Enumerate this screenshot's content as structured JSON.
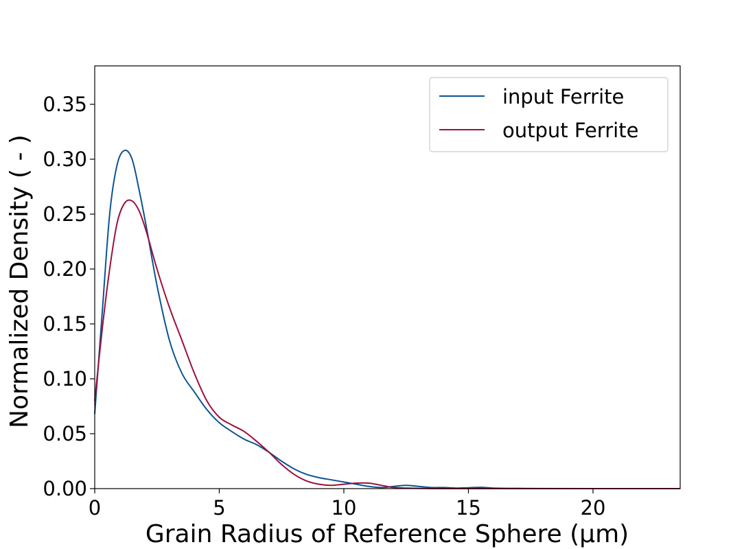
{
  "chart_data": {
    "type": "line",
    "title": "",
    "xlabel": "Grain Radius of Reference Sphere (μm)",
    "ylabel": "Normalized Density ( - )",
    "xlim": [
      0,
      23.5
    ],
    "ylim": [
      0,
      0.385
    ],
    "x_ticks": [
      0,
      5,
      10,
      15,
      20
    ],
    "x_tick_labels": [
      "0",
      "5",
      "10",
      "15",
      "20"
    ],
    "y_ticks": [
      0.0,
      0.05,
      0.1,
      0.15,
      0.2,
      0.25,
      0.3,
      0.35
    ],
    "y_tick_labels": [
      "0.00",
      "0.05",
      "0.10",
      "0.15",
      "0.20",
      "0.25",
      "0.30",
      "0.35"
    ],
    "grid": false,
    "legend_position": "top-right",
    "series": [
      {
        "name": "input Ferrite",
        "color": "#0b5394",
        "x": [
          0,
          0.3,
          0.6,
          0.9,
          1.2,
          1.5,
          1.8,
          2.1,
          2.5,
          3.0,
          3.5,
          4.0,
          4.5,
          5.0,
          5.5,
          6.0,
          6.5,
          7.0,
          7.5,
          8.0,
          8.5,
          9.0,
          9.5,
          10.0,
          10.5,
          11.0,
          11.5,
          12.0,
          12.5,
          13.0,
          13.5,
          14.0,
          14.5,
          15.0,
          15.5,
          16.0,
          17.0,
          18.0,
          20.0,
          23.5
        ],
        "y": [
          0.068,
          0.16,
          0.25,
          0.295,
          0.308,
          0.3,
          0.27,
          0.235,
          0.185,
          0.135,
          0.105,
          0.088,
          0.072,
          0.06,
          0.052,
          0.045,
          0.04,
          0.033,
          0.025,
          0.018,
          0.013,
          0.01,
          0.008,
          0.006,
          0.004,
          0.002,
          0.001,
          0.002,
          0.003,
          0.002,
          0.001,
          0.001,
          0.0005,
          0.0008,
          0.0012,
          0.0005,
          0.0002,
          0.0001,
          0.0,
          0.0
        ]
      },
      {
        "name": "output Ferrite",
        "color": "#9b0f3b",
        "x": [
          0,
          0.3,
          0.6,
          0.9,
          1.2,
          1.5,
          1.8,
          2.1,
          2.5,
          3.0,
          3.5,
          4.0,
          4.5,
          5.0,
          5.5,
          6.0,
          6.5,
          7.0,
          7.5,
          8.0,
          8.5,
          9.0,
          9.5,
          10.0,
          10.5,
          11.0,
          11.5,
          12.0,
          12.5,
          13.0,
          13.5,
          14.0,
          15.0,
          16.0,
          17.0,
          18.0,
          20.0,
          23.5
        ],
        "y": [
          0.08,
          0.145,
          0.2,
          0.242,
          0.26,
          0.262,
          0.252,
          0.232,
          0.2,
          0.165,
          0.135,
          0.105,
          0.08,
          0.065,
          0.058,
          0.052,
          0.043,
          0.033,
          0.022,
          0.013,
          0.007,
          0.004,
          0.003,
          0.004,
          0.005,
          0.005,
          0.003,
          0.001,
          0.0005,
          0.0002,
          0.0001,
          0.0,
          0.0,
          0.0,
          0.0,
          0.0,
          0.0,
          0.0
        ]
      }
    ]
  }
}
